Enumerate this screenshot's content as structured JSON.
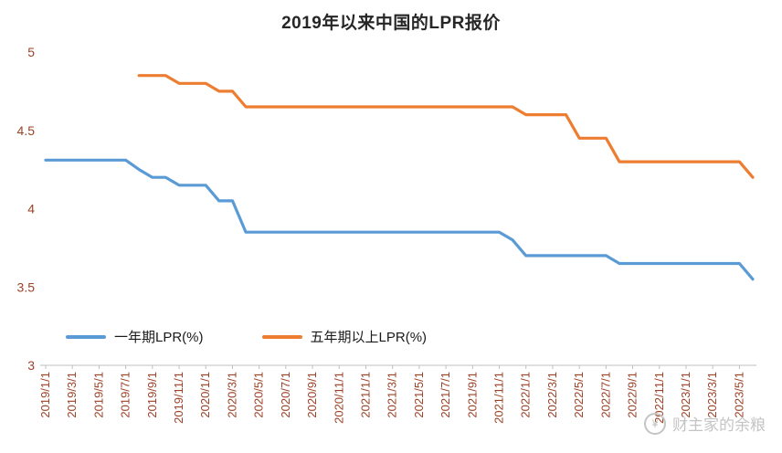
{
  "colors": {
    "axis_label": "#9C4227",
    "axis_line": "#BFBFBF",
    "title": "#262626",
    "legend_text": "#1A1A1A",
    "watermark": "#C4C4C4"
  },
  "chart_data": {
    "type": "line",
    "title": "2019年以来中国的LPR报价",
    "xlabel": "",
    "ylabel": "",
    "ylim": [
      3,
      5
    ],
    "y_ticks": [
      3,
      3.5,
      4,
      4.5,
      5
    ],
    "grid": false,
    "legend_position": "bottom-left-inside",
    "months_total": 54,
    "x_label_month_step": 2,
    "x_tick_labels": [
      "2019/1/1",
      "2019/3/1",
      "2019/5/1",
      "2019/7/1",
      "2019/9/1",
      "2019/11/1",
      "2020/1/1",
      "2020/3/1",
      "2020/5/1",
      "2020/7/1",
      "2020/9/1",
      "2020/11/1",
      "2021/1/1",
      "2021/3/1",
      "2021/5/1",
      "2021/7/1",
      "2021/9/1",
      "2021/11/1",
      "2022/1/1",
      "2022/3/1",
      "2022/5/1",
      "2022/7/1",
      "2022/9/1",
      "2022/11/1",
      "2023/1/1",
      "2023/3/1",
      "2023/5/1"
    ],
    "series": [
      {
        "name": "一年期LPR(%)",
        "color": "#5B9BD5",
        "start_month": 0,
        "values": [
          4.31,
          4.31,
          4.31,
          4.31,
          4.31,
          4.31,
          4.31,
          4.25,
          4.2,
          4.2,
          4.15,
          4.15,
          4.15,
          4.05,
          4.05,
          3.85,
          3.85,
          3.85,
          3.85,
          3.85,
          3.85,
          3.85,
          3.85,
          3.85,
          3.85,
          3.85,
          3.85,
          3.85,
          3.85,
          3.85,
          3.85,
          3.85,
          3.85,
          3.85,
          3.85,
          3.8,
          3.7,
          3.7,
          3.7,
          3.7,
          3.7,
          3.7,
          3.7,
          3.65,
          3.65,
          3.65,
          3.65,
          3.65,
          3.65,
          3.65,
          3.65,
          3.65,
          3.65,
          3.55
        ]
      },
      {
        "name": "五年期以上LPR(%)",
        "color": "#ED7D31",
        "start_month": 7,
        "values": [
          4.85,
          4.85,
          4.85,
          4.8,
          4.8,
          4.8,
          4.75,
          4.75,
          4.65,
          4.65,
          4.65,
          4.65,
          4.65,
          4.65,
          4.65,
          4.65,
          4.65,
          4.65,
          4.65,
          4.65,
          4.65,
          4.65,
          4.65,
          4.65,
          4.65,
          4.65,
          4.65,
          4.65,
          4.65,
          4.6,
          4.6,
          4.6,
          4.6,
          4.45,
          4.45,
          4.45,
          4.3,
          4.3,
          4.3,
          4.3,
          4.3,
          4.3,
          4.3,
          4.3,
          4.3,
          4.3,
          4.2
        ]
      }
    ]
  },
  "legend": {
    "item1": "一年期LPR(%)",
    "item2": "五年期以上LPR(%)"
  },
  "watermark": {
    "text": "财主家的余粮",
    "icon": "coin-circle-icon",
    "icon_glyph": "¥"
  }
}
